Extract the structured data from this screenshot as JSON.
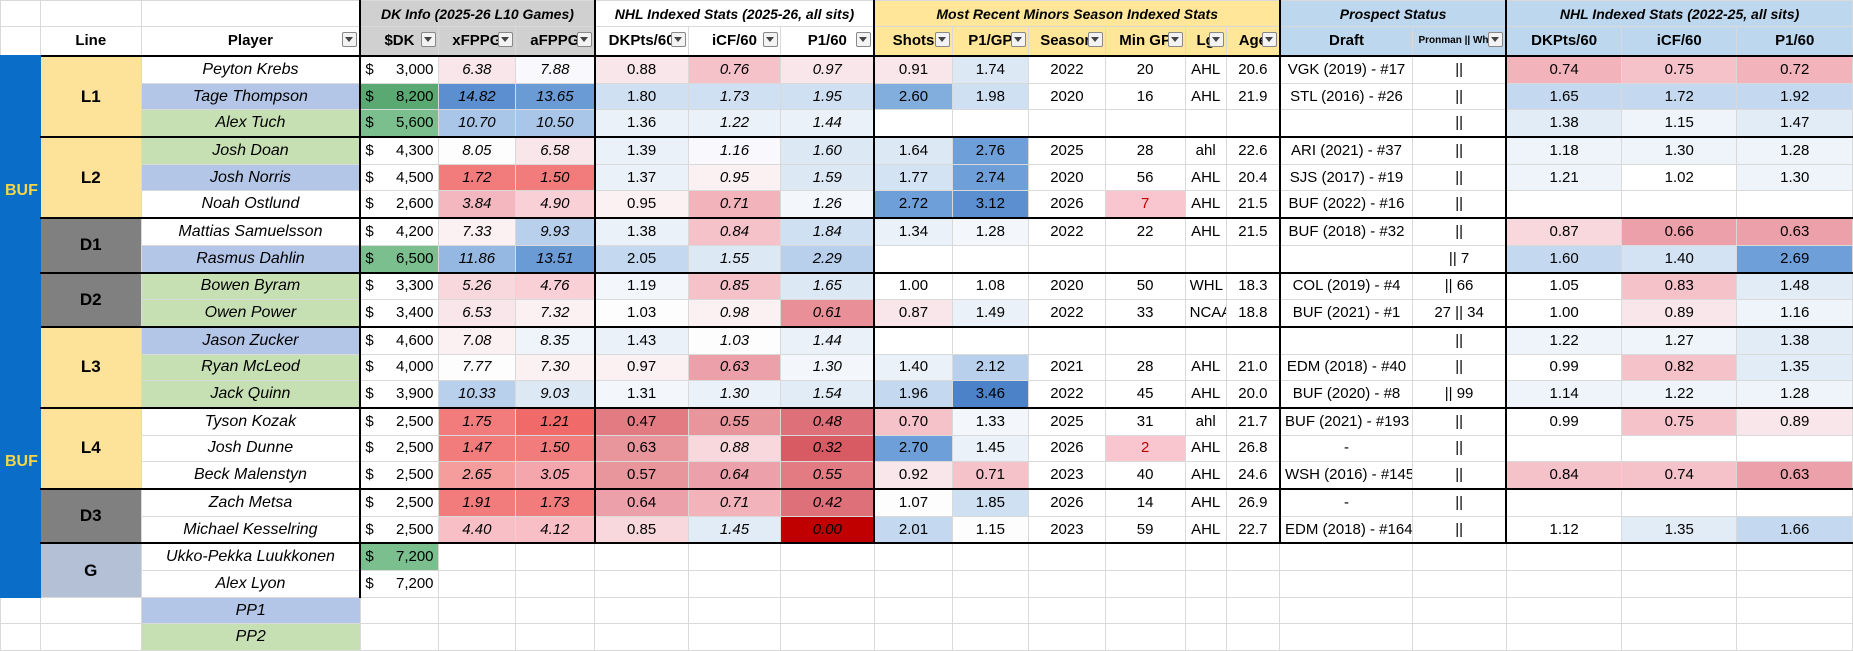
{
  "headers": {
    "group": {
      "dk": "DK Info (2025-26 L10 Games)",
      "nhl": "NHL Indexed Stats (2025-26, all sits)",
      "minors": "Most Recent Minors Season Indexed Stats",
      "prospect": "Prospect Status",
      "nhl3": "NHL Indexed Stats (2022-25, all sits)"
    },
    "columns": {
      "line": "Line",
      "player": "Player",
      "dk": "$DK",
      "xfppg": "xFPPG",
      "afppg": "aFPPG",
      "dkpts60": "DKPts/60",
      "icf60": "iCF/60",
      "p160": "P1/60",
      "shots": "Shots",
      "p1gp": "P1/GP",
      "season": "Season",
      "mingp": "Min GP",
      "lg": "Lg",
      "age": "Age",
      "draft": "Draft",
      "pronman": "Pronman || Whee",
      "dkpts60_b": "DKPts/60",
      "icf60_b": "iCF/60",
      "p160_b": "P1/60"
    }
  },
  "teams": [
    "BUF",
    "BUF"
  ],
  "lines": [
    "L1",
    "L2",
    "D1",
    "D2",
    "L3",
    "L4",
    "D3",
    "G"
  ],
  "pp": [
    "PP1",
    "PP2"
  ],
  "rows": [
    {
      "player": "Peyton Krebs",
      "pc": "#fff",
      "dk": "3,000",
      "dkc": "#fff",
      "xf": "6.38",
      "xfc": "#f8e6ea",
      "af": "7.88",
      "afc": "#f8f8fd",
      "d60": "0.88",
      "d60c": "#f8e6ea",
      "i60": "0.76",
      "i60c": "#f5c2c9",
      "p60": "0.97",
      "p60c": "#f8e6ea",
      "sh": "0.91",
      "shc": "#f8e6ea",
      "pg": "1.74",
      "pgc": "#dde8f5",
      "se": "2022",
      "gp": "20",
      "gpc": "#fff",
      "lg": "AHL",
      "ag": "20.6",
      "dr": "VGK (2019) - #17",
      "pr": "||",
      "b1": "0.74",
      "b1c": "#f2b3bb",
      "b2": "0.75",
      "b2c": "#f5c2c9",
      "b3": "0.72",
      "b3c": "#f2b3bb"
    },
    {
      "player": "Tage Thompson",
      "pc": "#b4c6e7",
      "dk": "8,200",
      "dkc": "#5aa872",
      "xf": "14.82",
      "xfc": "#5b8fd0",
      "af": "13.65",
      "afc": "#6a9bd4",
      "d60": "1.80",
      "d60c": "#cfe0f2",
      "i60": "1.73",
      "i60c": "#cfe0f2",
      "p60": "1.95",
      "p60c": "#cfe0f2",
      "sh": "2.60",
      "shc": "#82aede",
      "pg": "1.98",
      "pgc": "#cfe0f2",
      "se": "2020",
      "gp": "16",
      "gpc": "#fff",
      "lg": "AHL",
      "ag": "21.9",
      "dr": "STL (2016) - #26",
      "pr": "||",
      "b1": "1.65",
      "b1c": "#c4d9f0",
      "b2": "1.72",
      "b2c": "#c4d9f0",
      "b3": "1.92",
      "b3c": "#c4d9f0"
    },
    {
      "player": "Alex Tuch",
      "pc": "#c6e0b4",
      "dk": "5,600",
      "dkc": "#7cbf8e",
      "xf": "10.70",
      "xfc": "#a9c6e8",
      "af": "10.50",
      "afc": "#a9c6e8",
      "d60": "1.36",
      "d60c": "#eaf1f9",
      "i60": "1.22",
      "i60c": "#eaf1f9",
      "p60": "1.44",
      "p60c": "#eaf1f9",
      "sh": "",
      "shc": "#fff",
      "pg": "",
      "pgc": "#fff",
      "se": "",
      "gp": "",
      "gpc": "#fff",
      "lg": "",
      "ag": "",
      "dr": "",
      "pr": "||",
      "b1": "1.38",
      "b1c": "#e2ecf7",
      "b2": "1.15",
      "b2c": "#eef4fa",
      "b3": "1.47",
      "b3c": "#e2ecf7"
    },
    {
      "player": "Josh Doan",
      "pc": "#c6e0b4",
      "dk": "4,300",
      "dkc": "#fff",
      "xf": "8.05",
      "xfc": "#fdfdfe",
      "af": "6.58",
      "afc": "#f8e6ea",
      "d60": "1.39",
      "d60c": "#eaf1f9",
      "i60": "1.16",
      "i60c": "#f8f8fd",
      "p60": "1.60",
      "p60c": "#dde8f5",
      "sh": "1.64",
      "shc": "#dde8f5",
      "pg": "2.76",
      "pgc": "#6f9fd8",
      "se": "2025",
      "gp": "28",
      "gpc": "#fff",
      "lg": "ahl",
      "ag": "22.6",
      "dr": "ARI (2021) - #37",
      "pr": "||",
      "b1": "1.18",
      "b1c": "#eef4fa",
      "b2": "1.30",
      "b2c": "#eef4fa",
      "b3": "1.28",
      "b3c": "#eef4fa"
    },
    {
      "player": "Josh Norris",
      "pc": "#b4c6e7",
      "dk": "4,500",
      "dkc": "#fff",
      "xf": "1.72",
      "xfc": "#f27c7c",
      "af": "1.50",
      "afc": "#f27c7c",
      "d60": "1.37",
      "d60c": "#eaf1f9",
      "i60": "0.95",
      "i60c": "#fbf0f2",
      "p60": "1.59",
      "p60c": "#dde8f5",
      "sh": "1.77",
      "shc": "#d3e3f4",
      "pg": "2.74",
      "pgc": "#6f9fd8",
      "se": "2020",
      "gp": "56",
      "gpc": "#fff",
      "lg": "AHL",
      "ag": "20.4",
      "dr": "SJS (2017) - #19",
      "pr": "||",
      "b1": "1.21",
      "b1c": "#eef4fa",
      "b2": "1.02",
      "b2c": "#fff",
      "b3": "1.30",
      "b3c": "#eef4fa"
    },
    {
      "player": "Noah Ostlund",
      "pc": "#fff",
      "dk": "2,600",
      "dkc": "#fff",
      "xf": "3.84",
      "xfc": "#f5b7bf",
      "af": "4.90",
      "afc": "#f8d0d6",
      "d60": "0.95",
      "d60c": "#fbf0f2",
      "i60": "0.71",
      "i60c": "#f2b3bb",
      "p60": "1.26",
      "p60c": "#f3f6fb",
      "sh": "2.72",
      "shc": "#6f9fd8",
      "pg": "3.12",
      "pgc": "#5b8fd0",
      "se": "2026",
      "gp": "7",
      "gpc": "#f9c6cf",
      "lg": "AHL",
      "ag": "21.5",
      "dr": "BUF (2022) - #16",
      "pr": "||",
      "b1": "",
      "b1c": "#fff",
      "b2": "",
      "b2c": "#fff",
      "b3": "",
      "b3c": "#fff"
    },
    {
      "player": "Mattias Samuelsson",
      "pc": "#fff",
      "dk": "4,200",
      "dkc": "#fff",
      "xf": "7.33",
      "xfc": "#fbf0f2",
      "af": "9.93",
      "afc": "#b8d0ec",
      "d60": "1.38",
      "d60c": "#eaf1f9",
      "i60": "0.84",
      "i60c": "#f5c2c9",
      "p60": "1.84",
      "p60c": "#cfe0f2",
      "sh": "1.34",
      "shc": "#eaf1f9",
      "pg": "1.28",
      "pgc": "#f3f6fb",
      "se": "2022",
      "gp": "22",
      "gpc": "#fff",
      "lg": "AHL",
      "ag": "21.5",
      "dr": "BUF (2018) - #32",
      "pr": "||",
      "b1": "0.87",
      "b1c": "#f8d8dd",
      "b2": "0.66",
      "b2c": "#eca1aa",
      "b3": "0.63",
      "b3c": "#eca1aa"
    },
    {
      "player": "Rasmus Dahlin",
      "pc": "#b4c6e7",
      "dk": "6,500",
      "dkc": "#7cbf8e",
      "xf": "11.86",
      "xfc": "#95b8e3",
      "af": "13.51",
      "afc": "#6a9bd4",
      "d60": "2.05",
      "d60c": "#c4d9f0",
      "i60": "1.55",
      "i60c": "#dde8f5",
      "p60": "2.29",
      "p60c": "#b8d0ec",
      "sh": "",
      "shc": "#fff",
      "pg": "",
      "pgc": "#fff",
      "se": "",
      "gp": "",
      "gpc": "#fff",
      "lg": "",
      "ag": "",
      "dr": "",
      "pr": "|| 7",
      "b1": "1.60",
      "b1c": "#c4d9f0",
      "b2": "1.40",
      "b2c": "#d3e3f4",
      "b3": "2.69",
      "b3c": "#6f9fd8"
    },
    {
      "player": "Bowen Byram",
      "pc": "#c6e0b4",
      "dk": "3,300",
      "dkc": "#fff",
      "xf": "5.26",
      "xfc": "#f8d8dd",
      "af": "4.76",
      "afc": "#f8d0d6",
      "d60": "1.19",
      "d60c": "#f3f6fb",
      "i60": "0.85",
      "i60c": "#f5c2c9",
      "p60": "1.65",
      "p60c": "#dde8f5",
      "sh": "1.00",
      "shc": "#fff",
      "pg": "1.08",
      "pgc": "#fff",
      "se": "2020",
      "gp": "50",
      "gpc": "#fff",
      "lg": "WHL",
      "ag": "18.3",
      "dr": "COL (2019) - #4",
      "pr": "|| 66",
      "b1": "1.05",
      "b1c": "#fff",
      "b2": "0.83",
      "b2c": "#f5c2c9",
      "b3": "1.48",
      "b3c": "#e2ecf7"
    },
    {
      "player": "Owen Power",
      "pc": "#c6e0b4",
      "dk": "3,400",
      "dkc": "#fff",
      "xf": "6.53",
      "xfc": "#f8e6ea",
      "af": "7.32",
      "afc": "#fbf0f2",
      "d60": "1.03",
      "d60c": "#fdfdfe",
      "i60": "0.98",
      "i60c": "#fbf0f2",
      "p60": "0.61",
      "p60c": "#e88f97",
      "sh": "0.87",
      "shc": "#f8e6ea",
      "pg": "1.49",
      "pgc": "#eaf1f9",
      "se": "2022",
      "gp": "33",
      "gpc": "#fff",
      "lg": "NCAA",
      "ag": "18.8",
      "dr": "BUF (2021) - #1",
      "pr": "27 || 34",
      "b1": "1.00",
      "b1c": "#fff",
      "b2": "0.89",
      "b2c": "#f8e6ea",
      "b3": "1.16",
      "b3c": "#eef4fa"
    },
    {
      "player": "Jason Zucker",
      "pc": "#b4c6e7",
      "dk": "4,600",
      "dkc": "#fff",
      "xf": "7.08",
      "xfc": "#fbf0f2",
      "af": "8.35",
      "afc": "#eef4fa",
      "d60": "1.43",
      "d60c": "#eaf1f9",
      "i60": "1.03",
      "i60c": "#fdfdfe",
      "p60": "1.44",
      "p60c": "#eaf1f9",
      "sh": "",
      "shc": "#fff",
      "pg": "",
      "pgc": "#fff",
      "se": "",
      "gp": "",
      "gpc": "#fff",
      "lg": "",
      "ag": "",
      "dr": "",
      "pr": "||",
      "b1": "1.22",
      "b1c": "#eef4fa",
      "b2": "1.27",
      "b2c": "#eef4fa",
      "b3": "1.38",
      "b3c": "#e2ecf7"
    },
    {
      "player": "Ryan McLeod",
      "pc": "#c6e0b4",
      "dk": "4,000",
      "dkc": "#fff",
      "xf": "7.77",
      "xfc": "#fdfdfe",
      "af": "7.30",
      "afc": "#fbf0f2",
      "d60": "0.97",
      "d60c": "#fbf0f2",
      "i60": "0.63",
      "i60c": "#eca1aa",
      "p60": "1.30",
      "p60c": "#f3f6fb",
      "sh": "1.40",
      "shc": "#eaf1f9",
      "pg": "2.12",
      "pgc": "#b8d0ec",
      "se": "2021",
      "gp": "28",
      "gpc": "#fff",
      "lg": "AHL",
      "ag": "21.0",
      "dr": "EDM (2018) - #40",
      "pr": "||",
      "b1": "0.99",
      "b1c": "#fff",
      "b2": "0.82",
      "b2c": "#f5c2c9",
      "b3": "1.35",
      "b3c": "#e2ecf7"
    },
    {
      "player": "Jack Quinn",
      "pc": "#c6e0b4",
      "dk": "3,900",
      "dkc": "#fff",
      "xf": "10.33",
      "xfc": "#b8d0ec",
      "af": "9.03",
      "afc": "#dde8f5",
      "d60": "1.31",
      "d60c": "#f3f6fb",
      "i60": "1.30",
      "i60c": "#eaf1f9",
      "p60": "1.54",
      "p60c": "#e2ecf7",
      "sh": "1.96",
      "shc": "#c4d9f0",
      "pg": "3.46",
      "pgc": "#4c82c8",
      "se": "2022",
      "gp": "45",
      "gpc": "#fff",
      "lg": "AHL",
      "ag": "20.0",
      "dr": "BUF (2020) - #8",
      "pr": "|| 99",
      "b1": "1.14",
      "b1c": "#eef4fa",
      "b2": "1.22",
      "b2c": "#eef4fa",
      "b3": "1.28",
      "b3c": "#eef4fa"
    },
    {
      "player": "Tyson Kozak",
      "pc": "#fff",
      "dk": "2,500",
      "dkc": "#fff",
      "xf": "1.75",
      "xfc": "#f27c7c",
      "af": "1.21",
      "afc": "#f06a6a",
      "d60": "0.47",
      "d60c": "#e27b82",
      "i60": "0.55",
      "i60c": "#e8959c",
      "p60": "0.48",
      "p60c": "#de7079",
      "sh": "0.70",
      "shc": "#f5c2c9",
      "pg": "1.33",
      "pgc": "#f3f6fb",
      "se": "2025",
      "gp": "31",
      "gpc": "#fff",
      "lg": "ahl",
      "ag": "21.7",
      "dr": "BUF (2021) - #193",
      "pr": "||",
      "b1": "0.99",
      "b1c": "#fff",
      "b2": "0.75",
      "b2c": "#f5c2c9",
      "b3": "0.89",
      "b3c": "#f8e6ea"
    },
    {
      "player": "Josh Dunne",
      "pc": "#fff",
      "dk": "2,500",
      "dkc": "#fff",
      "xf": "1.47",
      "xfc": "#f27c7c",
      "af": "1.50",
      "afc": "#f27c7c",
      "d60": "0.63",
      "d60c": "#e8959c",
      "i60": "0.88",
      "i60c": "#f8d8dd",
      "p60": "0.32",
      "p60c": "#d85a63",
      "sh": "2.70",
      "shc": "#6f9fd8",
      "pg": "1.45",
      "pgc": "#eaf1f9",
      "se": "2026",
      "gp": "2",
      "gpc": "#f9c6cf",
      "lg": "AHL",
      "ag": "26.8",
      "dr": "-",
      "pr": "||",
      "b1": "",
      "b1c": "#fff",
      "b2": "",
      "b2c": "#fff",
      "b3": "",
      "b3c": "#fff"
    },
    {
      "player": "Beck Malenstyn",
      "pc": "#fff",
      "dk": "2,500",
      "dkc": "#fff",
      "xf": "2.65",
      "xfc": "#f59c9c",
      "af": "3.05",
      "afc": "#f5a6ad",
      "d60": "0.57",
      "d60c": "#e8959c",
      "i60": "0.64",
      "i60c": "#eca1aa",
      "p60": "0.55",
      "p60c": "#e27b82",
      "sh": "0.92",
      "shc": "#f8e6ea",
      "pg": "0.71",
      "pgc": "#f5c2c9",
      "se": "2023",
      "gp": "40",
      "gpc": "#fff",
      "lg": "AHL",
      "ag": "24.6",
      "dr": "WSH (2016) - #145",
      "pr": "||",
      "b1": "0.84",
      "b1c": "#f5c2c9",
      "b2": "0.74",
      "b2c": "#f5c2c9",
      "b3": "0.63",
      "b3c": "#eca1aa"
    },
    {
      "player": "Zach Metsa",
      "pc": "#fff",
      "dk": "2,500",
      "dkc": "#fff",
      "xf": "1.91",
      "xfc": "#f27c7c",
      "af": "1.73",
      "afc": "#f27c7c",
      "d60": "0.64",
      "d60c": "#eca1aa",
      "i60": "0.71",
      "i60c": "#f2b3bb",
      "p60": "0.42",
      "p60c": "#de7079",
      "sh": "1.07",
      "shc": "#fdfdfe",
      "pg": "1.85",
      "pgc": "#cfe0f2",
      "se": "2026",
      "gp": "14",
      "gpc": "#fff",
      "lg": "AHL",
      "ag": "26.9",
      "dr": "-",
      "pr": "||",
      "b1": "",
      "b1c": "#fff",
      "b2": "",
      "b2c": "#fff",
      "b3": "",
      "b3c": "#fff"
    },
    {
      "player": "Michael Kesselring",
      "pc": "#fff",
      "dk": "2,500",
      "dkc": "#fff",
      "xf": "4.40",
      "xfc": "#f8c0c6",
      "af": "4.12",
      "afc": "#f8c0c6",
      "d60": "0.85",
      "d60c": "#f8d8dd",
      "i60": "1.45",
      "i60c": "#e2ecf7",
      "p60": "0.00",
      "p60c": "#c00000",
      "sh": "2.01",
      "shc": "#c4d9f0",
      "pg": "1.15",
      "pgc": "#fdfdfe",
      "se": "2023",
      "gp": "59",
      "gpc": "#fff",
      "lg": "AHL",
      "ag": "22.7",
      "dr": "EDM (2018) - #164",
      "pr": "||",
      "b1": "1.12",
      "b1c": "#fff",
      "b2": "1.35",
      "b2c": "#e2ecf7",
      "b3": "1.66",
      "b3c": "#c4d9f0"
    },
    {
      "player": "Ukko-Pekka Luukkonen",
      "pc": "#fff",
      "dk": "7,200",
      "dkc": "#7cbf8e"
    },
    {
      "player": "Alex Lyon",
      "pc": "#fff",
      "dk": "7,200",
      "dkc": "#fff"
    }
  ]
}
